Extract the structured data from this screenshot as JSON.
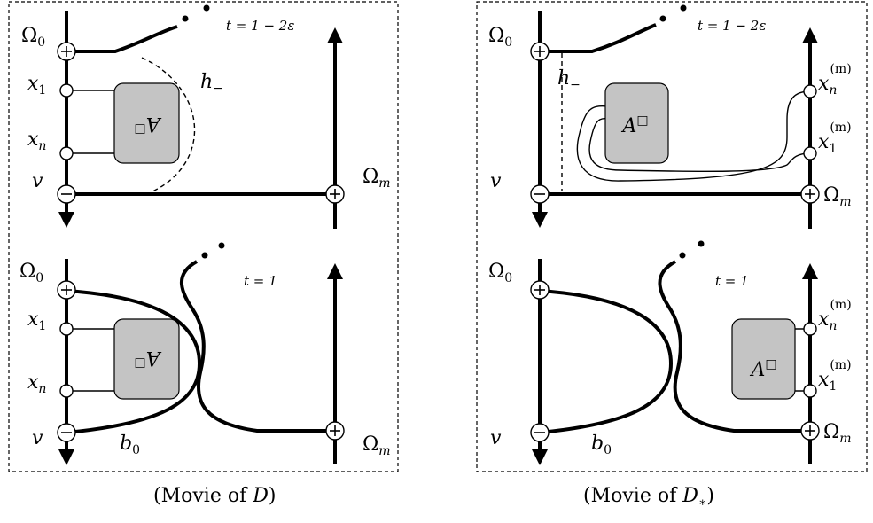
{
  "left": {
    "caption_prefix": "(Movie of ",
    "caption_var": "D",
    "caption_suffix": ")",
    "top": {
      "t_label": "t = 1 − 2ε",
      "omega0": "Ω",
      "omega0_sub": "0",
      "omegam": "Ω",
      "omegam_sub": "m",
      "x1": "x",
      "x1_sub": "1",
      "xn": "x",
      "xn_sub": "n",
      "v": "v",
      "h": "h",
      "h_sub": "−",
      "box": "A",
      "box_sq": "□"
    },
    "bottom": {
      "t_label": "t = 1",
      "omega0": "Ω",
      "omega0_sub": "0",
      "omegam": "Ω",
      "omegam_sub": "m",
      "x1": "x",
      "x1_sub": "1",
      "xn": "x",
      "xn_sub": "n",
      "v": "v",
      "b": "b",
      "b_sub": "0",
      "box": "A",
      "box_sq": "□"
    }
  },
  "right": {
    "caption_prefix": "(Movie of ",
    "caption_var": "D",
    "caption_sub": "∗",
    "caption_suffix": ")",
    "top": {
      "t_label": "t = 1 − 2ε",
      "omega0": "Ω",
      "omega0_sub": "0",
      "omegam": "Ω",
      "omegam_sub": "m",
      "xn": "x",
      "xn_sub": "n",
      "xn_sup": "(m)",
      "x1": "x",
      "x1_sub": "1",
      "x1_sup": "(m)",
      "v": "v",
      "h": "h",
      "h_sub": "−",
      "box": "A",
      "box_sq": "□"
    },
    "bottom": {
      "t_label": "t = 1",
      "omega0": "Ω",
      "omega0_sub": "0",
      "omegam": "Ω",
      "omegam_sub": "m",
      "xn": "x",
      "xn_sub": "n",
      "xn_sup": "(m)",
      "x1": "x",
      "x1_sub": "1",
      "x1_sup": "(m)",
      "v": "v",
      "b": "b",
      "b_sub": "0",
      "box": "A",
      "box_sq": "□"
    }
  }
}
